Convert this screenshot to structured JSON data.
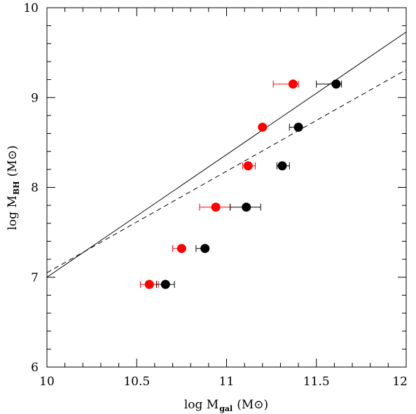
{
  "chart_data": {
    "type": "scatter",
    "xlabel": {
      "main": "log M",
      "sub": "gal",
      "unit": "(M⊙)"
    },
    "ylabel": {
      "main": "log M",
      "sub": "BH",
      "unit": "(M⊙)"
    },
    "xlim": [
      10,
      12
    ],
    "ylim": [
      6,
      10
    ],
    "xticks": [
      "10",
      "10.5",
      "11",
      "11.5",
      "12"
    ],
    "yticks": [
      "6",
      "7",
      "8",
      "9",
      "10"
    ],
    "grid": false,
    "series": [
      {
        "color": "#ff0000",
        "points": [
          {
            "x": 10.57,
            "y": 6.92,
            "xlo": 10.52,
            "xhi": 10.62
          },
          {
            "x": 10.75,
            "y": 7.32,
            "xlo": 10.7,
            "xhi": 10.76
          },
          {
            "x": 10.94,
            "y": 7.78,
            "xlo": 10.85,
            "xhi": 11.02
          },
          {
            "x": 11.12,
            "y": 8.24,
            "xlo": 11.09,
            "xhi": 11.16
          },
          {
            "x": 11.2,
            "y": 8.67,
            "xlo": 11.19,
            "xhi": 11.21
          },
          {
            "x": 11.37,
            "y": 9.15,
            "xlo": 11.26,
            "xhi": 11.4
          }
        ]
      },
      {
        "color": "#000000",
        "points": [
          {
            "x": 10.66,
            "y": 6.92,
            "xlo": 10.61,
            "xhi": 10.71
          },
          {
            "x": 10.88,
            "y": 7.32,
            "xlo": 10.83,
            "xhi": 10.89
          },
          {
            "x": 11.11,
            "y": 7.78,
            "xlo": 11.02,
            "xhi": 11.19
          },
          {
            "x": 11.31,
            "y": 8.24,
            "xlo": 11.28,
            "xhi": 11.35
          },
          {
            "x": 11.4,
            "y": 8.67,
            "xlo": 11.35,
            "xhi": 11.41
          },
          {
            "x": 11.61,
            "y": 9.15,
            "xlo": 11.5,
            "xhi": 11.64
          }
        ]
      }
    ],
    "lines": [
      {
        "style": "solid",
        "x": [
          10,
          12
        ],
        "y": [
          7.0,
          9.73
        ]
      },
      {
        "style": "dashed",
        "x": [
          10,
          12
        ],
        "y": [
          7.05,
          9.31
        ]
      }
    ]
  }
}
